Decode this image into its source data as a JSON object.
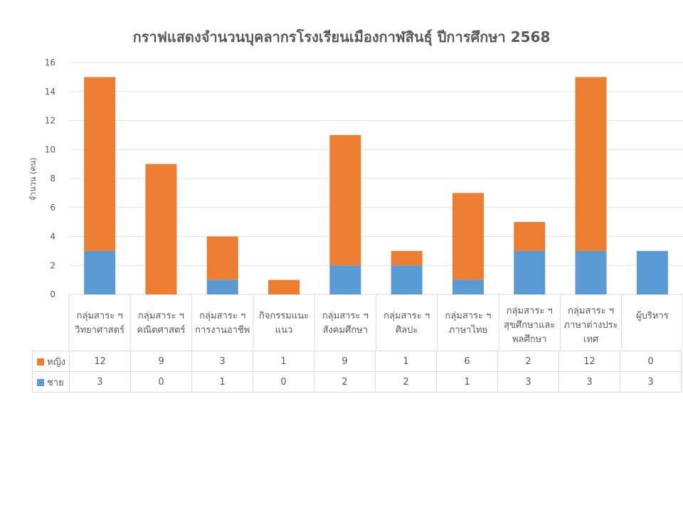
{
  "chart_data": {
    "type": "bar",
    "stacked": true,
    "title": "กราฟแสดงจำนวนบุคลากรโรงเรียนเมืองกาฬสินธุ์ ปีการศึกษา 2568",
    "ylabel": "จำนวน (คน)",
    "xlabel": "",
    "ylim": [
      0,
      16
    ],
    "yticks": [
      0,
      2,
      4,
      6,
      8,
      10,
      12,
      14,
      16
    ],
    "grid": true,
    "legend_placement": "bottom-data-table",
    "categories": [
      [
        "กลุ่มสาระ ฯ",
        "วิทยาศาสตร์"
      ],
      [
        "กลุ่มสาระ ฯ",
        "คณิตศาสตร์"
      ],
      [
        "กลุ่มสาระ ฯ",
        "การงานอาชีพ"
      ],
      [
        "กิจกรรมแนะ",
        "แนว"
      ],
      [
        "กลุ่มสาระ ฯ",
        "สังคมศึกษา"
      ],
      [
        "กลุ่มสาระ ฯ",
        "ศิลปะ"
      ],
      [
        "กลุ่มสาระ ฯ",
        "ภาษาไทย"
      ],
      [
        "กลุ่มสาระ ฯ",
        "สุขศึกษาและ",
        "พลศึกษา"
      ],
      [
        "กลุ่มสาระ ฯ",
        "ภาษาต่างประ",
        "เทศ"
      ],
      [
        "ผู้บริหาร"
      ]
    ],
    "series": [
      {
        "name": "ชาย",
        "color": "#5b9bd5",
        "values": [
          3,
          0,
          1,
          0,
          2,
          2,
          1,
          3,
          3,
          3
        ]
      },
      {
        "name": "หญิง",
        "color": "#ed7d31",
        "values": [
          12,
          9,
          3,
          1,
          9,
          1,
          6,
          2,
          12,
          0
        ]
      }
    ]
  }
}
